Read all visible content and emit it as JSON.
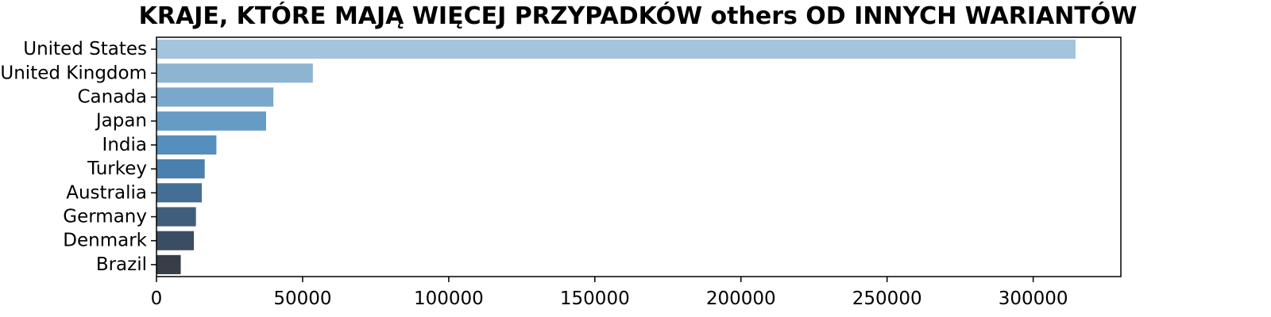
{
  "chart_data": {
    "type": "bar",
    "orientation": "horizontal",
    "title": "KRAJE, KTÓRE MAJĄ WIĘCEJ PRZYPADKÓW others OD INNYCH WARIANTÓW",
    "xlabel": "",
    "ylabel": "",
    "categories": [
      "United States",
      "United Kingdom",
      "Canada",
      "Japan",
      "India",
      "Turkey",
      "Australia",
      "Germany",
      "Denmark",
      "Brazil"
    ],
    "values": [
      314500,
      53500,
      40000,
      37500,
      20500,
      16500,
      15500,
      13500,
      12800,
      8300
    ],
    "xlim": [
      0,
      330000
    ],
    "xticks": [
      0,
      50000,
      100000,
      150000,
      200000,
      250000,
      300000
    ],
    "grid": false,
    "legend": "none",
    "colors": [
      "#a3c4dc",
      "#8db5d2",
      "#79a8cb",
      "#659bc4",
      "#548fbd",
      "#4a80ad",
      "#436f95",
      "#405e7c",
      "#3b4d63",
      "#363e47"
    ]
  }
}
